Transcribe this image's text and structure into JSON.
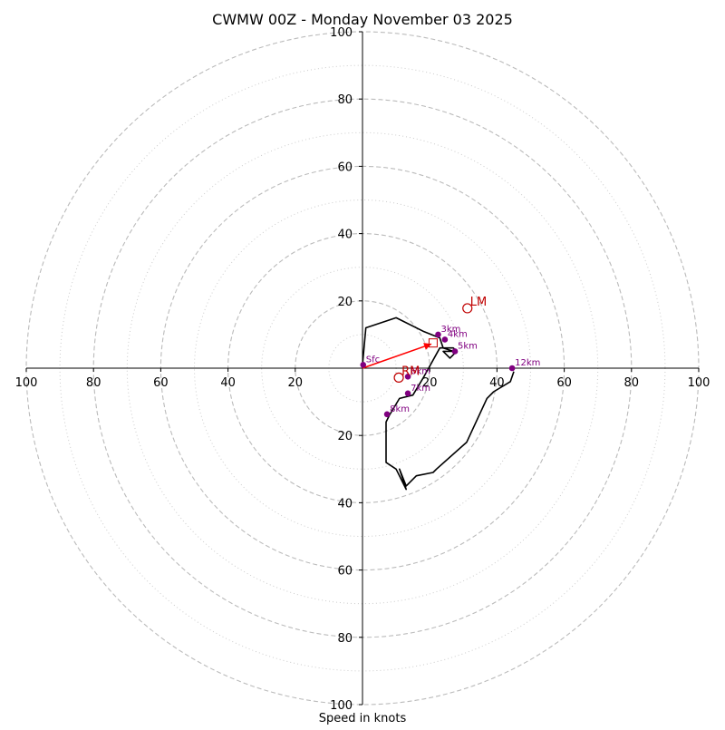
{
  "chart_data": {
    "type": "hodograph",
    "title": "CWMW 00Z - Monday November 03 2025",
    "xlabel": "Speed in knots",
    "xlim": [
      -100,
      100
    ],
    "ylim": [
      -100,
      100
    ],
    "rings_major": [
      20,
      40,
      60,
      80,
      100
    ],
    "rings_minor": [
      10,
      30,
      50,
      70,
      90
    ],
    "x_ticks": [
      {
        "value": -100,
        "label": "100"
      },
      {
        "value": -80,
        "label": "80"
      },
      {
        "value": -60,
        "label": "60"
      },
      {
        "value": -40,
        "label": "40"
      },
      {
        "value": -20,
        "label": "20"
      },
      {
        "value": 20,
        "label": "20"
      },
      {
        "value": 40,
        "label": "40"
      },
      {
        "value": 60,
        "label": "60"
      },
      {
        "value": 80,
        "label": "80"
      },
      {
        "value": 100,
        "label": "100"
      }
    ],
    "y_ticks": [
      {
        "value": 100,
        "label": "100"
      },
      {
        "value": 80,
        "label": "80"
      },
      {
        "value": 60,
        "label": "60"
      },
      {
        "value": 40,
        "label": "40"
      },
      {
        "value": 20,
        "label": "20"
      },
      {
        "value": -20,
        "label": "20"
      },
      {
        "value": -40,
        "label": "40"
      },
      {
        "value": -60,
        "label": "60"
      },
      {
        "value": -80,
        "label": "80"
      },
      {
        "value": -100,
        "label": "100"
      }
    ],
    "trace": [
      [
        0,
        1
      ],
      [
        1,
        12
      ],
      [
        10,
        15
      ],
      [
        18,
        11
      ],
      [
        23,
        9
      ],
      [
        24,
        6
      ],
      [
        27,
        5
      ],
      [
        24,
        5
      ],
      [
        26,
        3
      ],
      [
        28,
        5
      ],
      [
        27,
        6
      ],
      [
        25,
        6
      ],
      [
        23,
        6
      ],
      [
        18,
        -3
      ],
      [
        15,
        -8
      ],
      [
        11,
        -9
      ],
      [
        8,
        -14
      ],
      [
        7,
        -16
      ],
      [
        7,
        -19
      ],
      [
        7,
        -28
      ],
      [
        10,
        -30
      ],
      [
        13,
        -36
      ],
      [
        11,
        -30
      ],
      [
        13,
        -35
      ],
      [
        16,
        -32
      ],
      [
        21,
        -31
      ],
      [
        22,
        -30
      ],
      [
        31,
        -22
      ],
      [
        37,
        -9
      ],
      [
        39,
        -7
      ],
      [
        44,
        -4
      ],
      [
        45,
        -1
      ]
    ],
    "height_markers": [
      {
        "label": "Sfc",
        "u": 0.2,
        "v": 1.0
      },
      {
        "label": "3km",
        "u": 22.5,
        "v": 10.0
      },
      {
        "label": "4km",
        "u": 24.5,
        "v": 8.5
      },
      {
        "label": "5km",
        "u": 27.5,
        "v": 5.0
      },
      {
        "label": "6km",
        "u": 13.5,
        "v": -2.5
      },
      {
        "label": "7km",
        "u": 13.5,
        "v": -7.5
      },
      {
        "label": "8km",
        "u": 7.3,
        "v": -13.7
      },
      {
        "label": "12km",
        "u": 44.5,
        "v": 0.0
      }
    ],
    "motion_markers": [
      {
        "label": "LM",
        "u": 31.2,
        "v": 17.8
      },
      {
        "label": "RM",
        "u": 10.8,
        "v": -2.8
      }
    ],
    "mean_wind": {
      "u": 21,
      "v": 7.5
    },
    "storm_motion_vector": {
      "u0": 0,
      "v0": 0,
      "u1": 20.5,
      "v1": 7.2
    },
    "colors": {
      "trace": "#000000",
      "markers": "#800080",
      "storm_motion": "#c00000",
      "vector": "#ff0000",
      "ring_major": "#bbbbbb",
      "ring_minor": "#cccccc"
    }
  }
}
